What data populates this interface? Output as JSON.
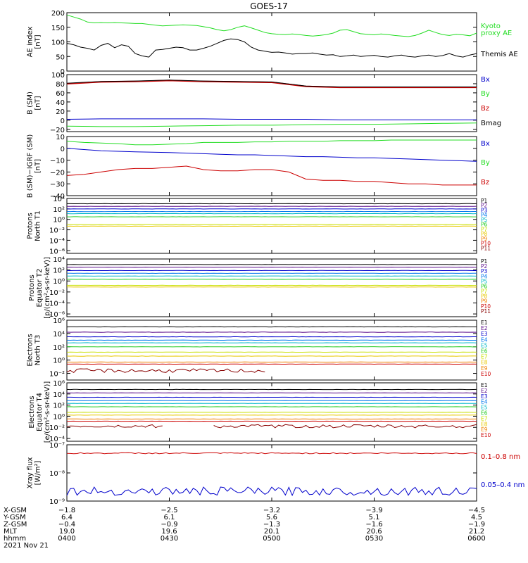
{
  "title": "GOES-17",
  "colors": {
    "black": "#000000",
    "green": "#22dd22",
    "blue": "#0000cc",
    "red": "#cc0000",
    "darkred": "#880000",
    "axis": "#000000"
  },
  "chart_data": [
    {
      "type": "line",
      "id": "ae",
      "ylabel": [
        "AE index",
        "[nT]"
      ],
      "yscale": "linear",
      "ylim": [
        0,
        200
      ],
      "yticks": [
        0,
        50,
        100,
        150,
        200
      ],
      "ytick_labels": [
        "0",
        "50",
        "100",
        "150",
        "200"
      ],
      "x": [
        0,
        2,
        4,
        6,
        8,
        10,
        12,
        14,
        16,
        18,
        20,
        22,
        24,
        26,
        28,
        30,
        32,
        34,
        36,
        38,
        40,
        42,
        44,
        46,
        48,
        50,
        52,
        54,
        56,
        58,
        60,
        62,
        64,
        66,
        68,
        70,
        72,
        74,
        76,
        78,
        80,
        82,
        84,
        86,
        88,
        90,
        92,
        94,
        96,
        98,
        100,
        102,
        104,
        106,
        108,
        110,
        112,
        114,
        116,
        118,
        120
      ],
      "series": [
        {
          "name": "Kyoto proxy AE",
          "color": "#22dd22",
          "label_lines": [
            "Kyoto",
            "proxy AE"
          ],
          "values": [
            192,
            185,
            178,
            168,
            165,
            166,
            165,
            166,
            165,
            164,
            163,
            163,
            160,
            157,
            155,
            156,
            157,
            158,
            157,
            156,
            152,
            148,
            142,
            138,
            142,
            150,
            155,
            148,
            140,
            132,
            128,
            126,
            125,
            127,
            125,
            122,
            120,
            122,
            125,
            130,
            140,
            142,
            135,
            128,
            126,
            124,
            127,
            125,
            122,
            120,
            118,
            122,
            130,
            140,
            132,
            125,
            122,
            126,
            124,
            121,
            130
          ]
        },
        {
          "name": "Themis AE",
          "color": "#000000",
          "label_lines": [
            "Themis AE"
          ],
          "values": [
            95,
            90,
            82,
            78,
            72,
            88,
            95,
            80,
            90,
            85,
            60,
            52,
            48,
            72,
            74,
            78,
            82,
            80,
            72,
            72,
            78,
            85,
            95,
            105,
            110,
            108,
            100,
            82,
            72,
            68,
            64,
            65,
            62,
            58,
            60,
            60,
            62,
            58,
            55,
            56,
            50,
            52,
            55,
            50,
            52,
            54,
            50,
            48,
            52,
            55,
            50,
            48,
            52,
            55,
            50,
            53,
            60,
            52,
            48,
            55,
            60
          ]
        }
      ]
    },
    {
      "type": "line",
      "id": "bsm",
      "ylabel": [
        "B (SM)",
        "[nT]"
      ],
      "yscale": "linear",
      "ylim": [
        -25,
        100
      ],
      "yticks": [
        -20,
        0,
        20,
        40,
        60,
        80,
        100
      ],
      "ytick_labels": [
        "−20",
        "0",
        "20",
        "40",
        "60",
        "80",
        "100"
      ],
      "x": [
        0,
        10,
        20,
        30,
        40,
        50,
        60,
        70,
        80,
        90,
        100,
        110,
        120
      ],
      "series": [
        {
          "name": "Bx",
          "color": "#0000cc",
          "values": [
            2,
            3,
            3,
            3,
            3,
            2,
            2,
            2,
            1,
            1,
            1,
            1,
            1
          ]
        },
        {
          "name": "By",
          "color": "#22dd22",
          "values": [
            -13,
            -14,
            -14,
            -13,
            -12,
            -11,
            -11,
            -10,
            -9,
            -9,
            -8,
            -7,
            -6
          ]
        },
        {
          "name": "Bz",
          "color": "#cc0000",
          "values": [
            80,
            84,
            85,
            87,
            85,
            84,
            83,
            74,
            72,
            72,
            72,
            72,
            72
          ]
        },
        {
          "name": "Bmag",
          "color": "#000000",
          "values": [
            81,
            85,
            86,
            88,
            86,
            85,
            84,
            75,
            73,
            73,
            73,
            73,
            73
          ]
        }
      ]
    },
    {
      "type": "line",
      "id": "bigrf",
      "ylabel": [
        "B (SM)−IGRF (SM)",
        "[nT]"
      ],
      "yscale": "linear",
      "ylim": [
        -40,
        10
      ],
      "yticks": [
        -40,
        -30,
        -20,
        -10,
        0,
        10
      ],
      "ytick_labels": [
        "−40",
        "−30",
        "−20",
        "−10",
        "0",
        "10"
      ],
      "x": [
        0,
        5,
        10,
        15,
        20,
        25,
        30,
        35,
        40,
        45,
        50,
        55,
        60,
        65,
        70,
        75,
        80,
        85,
        90,
        95,
        100,
        105,
        110,
        115,
        120
      ],
      "series": [
        {
          "name": "Bx",
          "color": "#0000cc",
          "values": [
            0,
            -1,
            -2,
            -2.5,
            -3,
            -3.3,
            -3.6,
            -4,
            -4.5,
            -5,
            -5.5,
            -5.5,
            -6,
            -6.5,
            -7,
            -7,
            -7.5,
            -8,
            -8,
            -8.5,
            -9,
            -9.5,
            -10,
            -10.5,
            -11
          ]
        },
        {
          "name": "By",
          "color": "#22dd22",
          "values": [
            6,
            5,
            4.5,
            4,
            3,
            3,
            3.5,
            4,
            5,
            5,
            5,
            5.5,
            5.5,
            6,
            6,
            6,
            6.5,
            6.5,
            6.5,
            7,
            7,
            7,
            7,
            7,
            7
          ]
        },
        {
          "name": "Bz",
          "color": "#cc0000",
          "values": [
            -23,
            -22,
            -20,
            -18,
            -17,
            -17,
            -16,
            -15,
            -18,
            -19,
            -19,
            -18,
            -18,
            -20,
            -26,
            -27,
            -27,
            -28,
            -28,
            -29,
            -30,
            -30,
            -31,
            -31,
            -31
          ]
        }
      ]
    },
    {
      "type": "line",
      "id": "protons_t1",
      "ylabel": [
        "Protons",
        "North T1"
      ],
      "yscale": "log",
      "ylim": [
        -6.5,
        4
      ],
      "yticks": [
        4,
        2,
        0,
        -2,
        -4,
        -6
      ],
      "ytick_labels": [
        "10⁴",
        "10²",
        "10⁰",
        "10⁻²",
        "10⁻⁴",
        "10⁻⁶"
      ],
      "series": [
        {
          "name": "P1",
          "color": "#000000",
          "level": 3.0
        },
        {
          "name": "P2",
          "color": "#5a0a8a",
          "level": 2.5
        },
        {
          "name": "P3",
          "color": "#0000cc",
          "level": 2.0
        },
        {
          "name": "P4",
          "color": "#0077ee",
          "level": 1.5
        },
        {
          "name": "P5",
          "color": "#00b8c8",
          "level": 1.1
        },
        {
          "name": "P6",
          "color": "#22cc22",
          "level": 0.5
        },
        {
          "name": "P7",
          "color": "#c8e000",
          "level": -1.0
        },
        {
          "name": "P8",
          "color": "#e8c800",
          "level": -1.3
        },
        {
          "name": "P9",
          "color": "#f08000",
          "level": -9
        },
        {
          "name": "P10",
          "color": "#cc0000",
          "level": -9
        },
        {
          "name": "P11",
          "color": "#880000",
          "level": -9
        }
      ]
    },
    {
      "type": "line",
      "id": "protons_t2",
      "ylabel": [
        "Protons",
        "Equator T2",
        "[p/(cm²-s-sr-keV)]"
      ],
      "yscale": "log",
      "ylim": [
        -6.5,
        4
      ],
      "yticks": [
        4,
        2,
        0,
        -2,
        -4,
        -6
      ],
      "ytick_labels": [
        "10⁴",
        "10²",
        "10⁰",
        "10⁻²",
        "10⁻⁴",
        "10⁻⁶"
      ],
      "series": [
        {
          "name": "P1",
          "color": "#000000",
          "level": 3.0
        },
        {
          "name": "P2",
          "color": "#5a0a8a",
          "level": 2.5
        },
        {
          "name": "P3",
          "color": "#0000cc",
          "level": 1.9
        },
        {
          "name": "P4",
          "color": "#0077ee",
          "level": 1.4
        },
        {
          "name": "P5",
          "color": "#00b8c8",
          "level": 0.9
        },
        {
          "name": "P6",
          "color": "#22cc22",
          "level": 0.3
        },
        {
          "name": "P7",
          "color": "#c8e000",
          "level": -0.8
        },
        {
          "name": "P8",
          "color": "#e8c800",
          "level": -1.1
        },
        {
          "name": "P9",
          "color": "#f08000",
          "level": -9
        },
        {
          "name": "P10",
          "color": "#cc0000",
          "level": -9
        },
        {
          "name": "P11",
          "color": "#880000",
          "level": -9
        }
      ]
    },
    {
      "type": "line",
      "id": "electrons_t3",
      "ylabel": [
        "Electrons",
        "North T3"
      ],
      "yscale": "log",
      "ylim": [
        -3,
        6
      ],
      "yticks": [
        6,
        4,
        2,
        0,
        -2
      ],
      "ytick_labels": [
        "10⁶",
        "10⁴",
        "10²",
        "10⁰",
        "10⁻²"
      ],
      "series": [
        {
          "name": "E1",
          "color": "#000000",
          "level": 5.0
        },
        {
          "name": "E2",
          "color": "#5a0a8a",
          "level": 4.2
        },
        {
          "name": "E3",
          "color": "#0000cc",
          "level": 3.5
        },
        {
          "name": "E4",
          "color": "#0077ee",
          "level": 3.0
        },
        {
          "name": "E5",
          "color": "#00b8c8",
          "level": 2.6
        },
        {
          "name": "E6",
          "color": "#22cc22",
          "level": 2.0
        },
        {
          "name": "E7",
          "color": "#c8e000",
          "level": 1.2
        },
        {
          "name": "E8",
          "color": "#e8c800",
          "level": 0.6
        },
        {
          "name": "E9",
          "color": "#f08000",
          "level": -0.3
        },
        {
          "name": "E10",
          "color": "#cc0000",
          "level": -0.6
        },
        {
          "name": "E10 low",
          "color": "#880000",
          "level": -1.6,
          "noisy": true,
          "xmax": 58
        }
      ]
    },
    {
      "type": "line",
      "id": "electrons_t4",
      "ylabel": [
        "Electrons",
        "Equator T4",
        "[e/(cm²-s-sr-keV)]"
      ],
      "yscale": "log",
      "ylim": [
        -4.5,
        6
      ],
      "yticks": [
        6,
        4,
        2,
        0,
        -2,
        -4
      ],
      "ytick_labels": [
        "10⁶",
        "10⁴",
        "10²",
        "10⁰",
        "10⁻²",
        "10⁻⁴"
      ],
      "series": [
        {
          "name": "E1",
          "color": "#000000",
          "level": 4.8
        },
        {
          "name": "E2",
          "color": "#5a0a8a",
          "level": 4.2
        },
        {
          "name": "E3",
          "color": "#0000cc",
          "level": 3.4
        },
        {
          "name": "E4",
          "color": "#0077ee",
          "level": 2.8
        },
        {
          "name": "E5",
          "color": "#00b8c8",
          "level": 2.3
        },
        {
          "name": "E6",
          "color": "#22cc22",
          "level": 1.7
        },
        {
          "name": "E7",
          "color": "#c8e000",
          "level": 0.7
        },
        {
          "name": "E8",
          "color": "#e8c800",
          "level": 0.2
        },
        {
          "name": "E9",
          "color": "#f08000",
          "level": -0.5
        },
        {
          "name": "E10",
          "color": "#cc0000",
          "level": -0.9
        },
        {
          "name": "E10 low",
          "color": "#880000",
          "level": -1.8,
          "noisy": true,
          "gap": [
            28,
            43
          ]
        }
      ]
    },
    {
      "type": "line",
      "id": "xray",
      "ylabel": [
        "Xray flux",
        "[W/m²]"
      ],
      "yscale": "log",
      "ylim": [
        -9,
        -7
      ],
      "yticks": [
        -7,
        -8,
        -9
      ],
      "ytick_labels": [
        "10⁻⁷",
        "10⁻⁸",
        "10⁻⁹"
      ],
      "series": [
        {
          "name": "0.1–0.8 nm",
          "color": "#cc0000",
          "level": -7.3
        },
        {
          "name": "0.05–0.4 nm",
          "color": "#0000cc",
          "level": -8.65,
          "noisy": true
        }
      ]
    }
  ],
  "x_axis": {
    "tick_rows": [
      {
        "label": "X-GSM",
        "values": [
          "−1.8",
          "−2.5",
          "−3.2",
          "−3.9",
          "−4.5"
        ]
      },
      {
        "label": "Y-GSM",
        "values": [
          "6.4",
          "6.1",
          "5.6",
          "5.1",
          "4.5"
        ]
      },
      {
        "label": "Z-GSM",
        "values": [
          "−0.4",
          "−0.9",
          "−1.3",
          "−1.6",
          "−1.9"
        ]
      },
      {
        "label": "MLT",
        "values": [
          "19.0",
          "19.6",
          "20.1",
          "20.6",
          "21.2"
        ]
      },
      {
        "label": "hhmm",
        "values": [
          "0400",
          "0430",
          "0500",
          "0530",
          "0600"
        ]
      }
    ],
    "date": "2021 Nov 21",
    "xlim": [
      0,
      120
    ]
  }
}
